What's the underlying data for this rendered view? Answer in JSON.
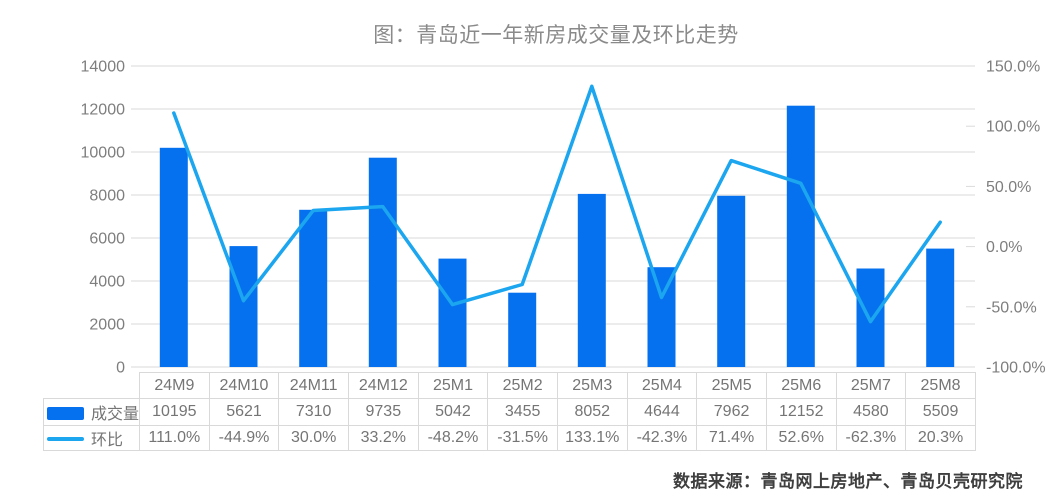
{
  "title": "图：青岛近一年新房成交量及环比走势",
  "source": "数据来源：青岛网上房地产、青岛贝壳研究院",
  "colors": {
    "bar": "#0671ee",
    "line": "#1ba6ef",
    "grid": "#dadada",
    "axis_text": "#7e7e7e",
    "table_text": "#757575",
    "title_text": "#8a8a8a",
    "source_text": "#3f3f3f",
    "border": "#d9d9d9"
  },
  "chart_data": {
    "type": "bar",
    "subtype": "combo-bar-line",
    "title": "图：青岛近一年新房成交量及环比走势",
    "categories": [
      "24M9",
      "24M10",
      "24M11",
      "24M12",
      "25M1",
      "25M2",
      "25M3",
      "25M4",
      "25M5",
      "25M6",
      "25M7",
      "25M8"
    ],
    "series": [
      {
        "name": "成交量",
        "type": "bar",
        "axis": "left",
        "values": [
          10195,
          5621,
          7310,
          9735,
          5042,
          3455,
          8052,
          4644,
          7962,
          12152,
          4580,
          5509
        ]
      },
      {
        "name": "环比",
        "type": "line",
        "axis": "right",
        "unit": "%",
        "values": [
          111.0,
          -44.9,
          30.0,
          33.2,
          -48.2,
          -31.5,
          133.1,
          -42.3,
          71.4,
          52.6,
          -62.3,
          20.3
        ]
      }
    ],
    "left_axis": {
      "min": 0,
      "max": 14000,
      "step": 2000,
      "tick_labels": [
        "0",
        "2000",
        "4000",
        "6000",
        "8000",
        "10000",
        "12000",
        "14000"
      ]
    },
    "right_axis": {
      "min": -100,
      "max": 150,
      "step": 50,
      "tick_labels": [
        "-100.0%",
        "-50.0%",
        "0.0%",
        "50.0%",
        "100.0%",
        "150.0%"
      ]
    },
    "grid": true,
    "legend_position": "table-left"
  },
  "table": {
    "legend": [
      {
        "label": "成交量",
        "swatch": "bar"
      },
      {
        "label": "环比",
        "swatch": "line"
      }
    ],
    "volume_row": [
      "10195",
      "5621",
      "7310",
      "9735",
      "5042",
      "3455",
      "8052",
      "4644",
      "7962",
      "12152",
      "4580",
      "5509"
    ],
    "pct_row": [
      "111.0%",
      "-44.9%",
      "30.0%",
      "33.2%",
      "-48.2%",
      "-31.5%",
      "133.1%",
      "-42.3%",
      "71.4%",
      "52.6%",
      "-62.3%",
      "20.3%"
    ]
  }
}
